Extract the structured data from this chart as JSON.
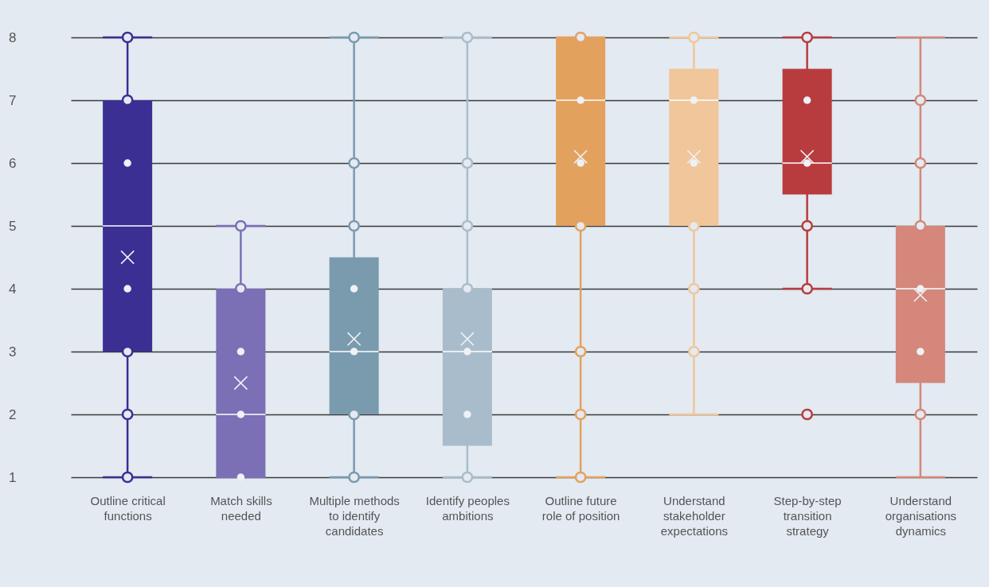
{
  "chart_data": {
    "type": "box",
    "categories": [
      "Outline critical functions",
      "Match skills needed",
      "Multiple methods to identify candidates",
      "Identify peoples ambitions",
      "Outline future role of position",
      "Understand stakeholder expectations",
      "Step-by-step transition strategy",
      "Understand organisations dynamics"
    ],
    "colors": [
      "#3b2f93",
      "#7b6fb6",
      "#7a9aae",
      "#a9bccb",
      "#e3a15e",
      "#f0c69a",
      "#b83c3e",
      "#d4877a"
    ],
    "boxes": [
      {
        "low": 1,
        "q1": 3,
        "median": 5,
        "q3": 7,
        "high": 8,
        "mean": 4.5
      },
      {
        "low": 1,
        "q1": 1,
        "median": 2,
        "q3": 4,
        "high": 5,
        "mean": 2.5
      },
      {
        "low": 1,
        "q1": 2,
        "median": 3,
        "q3": 4.5,
        "high": 8,
        "mean": 3.2
      },
      {
        "low": 1,
        "q1": 1.5,
        "median": 3,
        "q3": 4,
        "high": 8,
        "mean": 3.2
      },
      {
        "low": 1,
        "q1": 5,
        "median": 7,
        "q3": 8,
        "high": 8,
        "mean": 6.1
      },
      {
        "low": 2,
        "q1": 5,
        "median": 7,
        "q3": 7.5,
        "high": 8,
        "mean": 6.1
      },
      {
        "low": 4,
        "q1": 5.5,
        "median": 6,
        "q3": 7.5,
        "high": 8,
        "mean": 6.1
      },
      {
        "low": 1,
        "q1": 2.5,
        "median": 4,
        "q3": 5,
        "high": 8,
        "mean": 3.9
      }
    ],
    "series": [
      {
        "type": "scatter",
        "marker": "circle",
        "x": [
          "Outline critical functions",
          "Outline critical functions",
          "Outline critical functions",
          "Outline critical functions",
          "Outline critical functions",
          "Match skills needed",
          "Match skills needed",
          "Multiple methods to identify candidates",
          "Multiple methods to identify candidates",
          "Multiple methods to identify candidates",
          "Multiple methods to identify candidates",
          "Multiple methods to identify candidates",
          "Identify peoples ambitions",
          "Identify peoples ambitions",
          "Identify peoples ambitions",
          "Identify peoples ambitions",
          "Identify peoples ambitions",
          "Outline future role of position",
          "Outline future role of position",
          "Outline future role of position",
          "Outline future role of position",
          "Outline future role of position",
          "Understand stakeholder expectations",
          "Understand stakeholder expectations",
          "Understand stakeholder expectations",
          "Understand stakeholder expectations",
          "Step-by-step transition strategy",
          "Step-by-step transition strategy",
          "Step-by-step transition strategy",
          "Step-by-step transition strategy",
          "Understand organisations dynamics",
          "Understand organisations dynamics",
          "Understand organisations dynamics",
          "Understand organisations dynamics"
        ],
        "values": [
          8,
          7,
          3,
          2,
          1,
          5,
          4,
          8,
          6,
          5,
          2,
          1,
          8,
          6,
          5,
          4,
          1,
          8,
          5,
          3,
          2,
          1,
          8,
          5,
          4,
          3,
          8,
          5,
          4,
          2,
          7,
          6,
          5,
          2
        ],
        "colors": [
          "#3b2f93",
          "#3b2f93",
          "#3b2f93",
          "#3b2f93",
          "#3b2f93",
          "#7b6fb6",
          "#7b6fb6",
          "#7a9aae",
          "#7a9aae",
          "#7a9aae",
          "#7a9aae",
          "#7a9aae",
          "#a9bccb",
          "#a9bccb",
          "#a9bccb",
          "#a9bccb",
          "#a9bccb",
          "#e3a15e",
          "#e3a15e",
          "#e3a15e",
          "#e3a15e",
          "#e3a15e",
          "#f0c69a",
          "#f0c69a",
          "#f0c69a",
          "#f0c69a",
          "#b83c3e",
          "#b83c3e",
          "#b83c3e",
          "#b83c3e",
          "#d4877a",
          "#d4877a",
          "#d4877a",
          "#d4877a"
        ]
      },
      {
        "type": "scatter",
        "marker": "circle",
        "color": "#eef1f5",
        "x": [
          "Outline critical functions",
          "Outline critical functions",
          "Match skills needed",
          "Match skills needed",
          "Match skills needed",
          "Multiple methods to identify candidates",
          "Multiple methods to identify candidates",
          "Identify peoples ambitions",
          "Identify peoples ambitions",
          "Outline future role of position",
          "Outline future role of position",
          "Understand stakeholder expectations",
          "Understand stakeholder expectations",
          "Step-by-step transition strategy",
          "Step-by-step transition strategy",
          "Understand organisations dynamics",
          "Understand organisations dynamics"
        ],
        "values": [
          6,
          4,
          3,
          2,
          1,
          4,
          3,
          3,
          2,
          7,
          6,
          7,
          6,
          7,
          6,
          4,
          3
        ]
      }
    ],
    "ylim": [
      1,
      8
    ],
    "yticks": [
      1,
      2,
      3,
      4,
      5,
      6,
      7,
      8
    ],
    "grid": "y"
  }
}
